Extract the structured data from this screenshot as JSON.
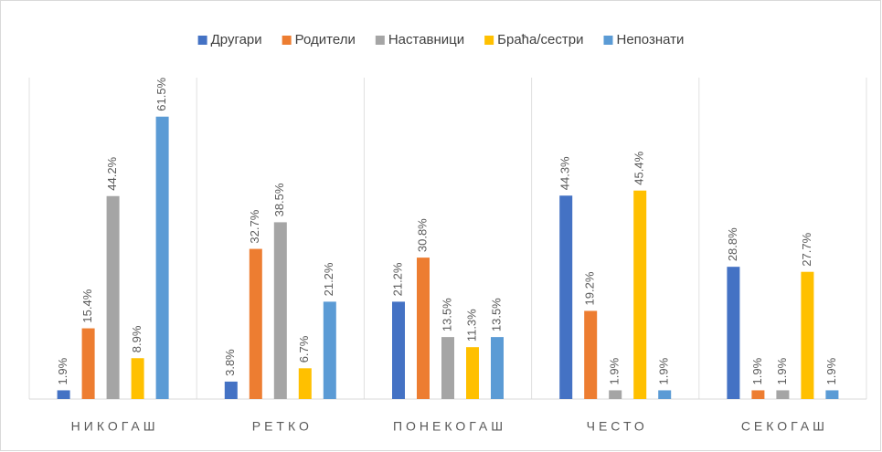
{
  "chart_data": {
    "type": "bar",
    "categories": [
      "НИКОГАШ",
      "РЕТКО",
      "ПОНЕКОГАШ",
      "ЧЕСТО",
      "СЕКОГАШ"
    ],
    "ylim": [
      0,
      70
    ],
    "series": [
      {
        "name": "Другари",
        "color": "#4472c4",
        "values": [
          1.9,
          3.8,
          21.2,
          44.3,
          28.8
        ],
        "value_labels": [
          "1.9%",
          "3.8%",
          "21.2%",
          "44.3%",
          "28.8%"
        ]
      },
      {
        "name": "Родители",
        "color": "#ed7d31",
        "values": [
          15.4,
          32.7,
          30.8,
          19.2,
          1.9
        ],
        "value_labels": [
          "15.4%",
          "32.7%",
          "30.8%",
          "19.2%",
          "1.9%"
        ]
      },
      {
        "name": "Наставници",
        "color": "#a5a5a5",
        "values": [
          44.2,
          38.5,
          13.5,
          1.9,
          1.9
        ],
        "value_labels": [
          "44.2%",
          "38.5%",
          "13.5%",
          "1.9%",
          "1.9%"
        ]
      },
      {
        "name": "Браћа/сестри",
        "color": "#ffc000",
        "values": [
          8.9,
          6.7,
          11.3,
          45.4,
          27.7
        ],
        "value_labels": [
          "8.9%",
          "6.7%",
          "11.3%",
          "45.4%",
          "27.7%"
        ]
      },
      {
        "name": "Непознати",
        "color": "#5b9bd5",
        "values": [
          61.5,
          21.2,
          13.5,
          1.9,
          1.9
        ],
        "value_labels": [
          "61.5%",
          "21.2%",
          "13.5%",
          "1.9%",
          "1.9%"
        ]
      }
    ]
  }
}
